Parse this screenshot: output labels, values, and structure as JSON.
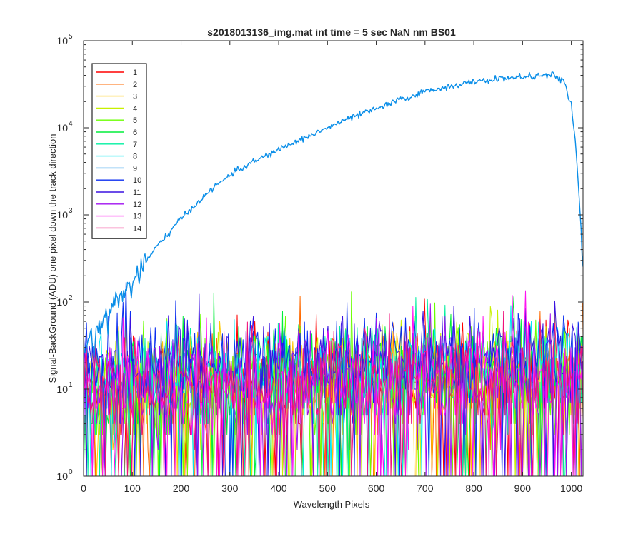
{
  "chart_data": {
    "type": "line",
    "title": "s2018013136_img.mat int time = 5 sec  NaN nm BS01",
    "xlabel": "Wavelength Pixels",
    "ylabel": "Signal-BackGround (ADU) one pixel down the track direction",
    "xlim": [
      0,
      1024
    ],
    "ylim": [
      1,
      100000
    ],
    "yscale": "log",
    "grid": false,
    "legend_position": "top-left",
    "x_ticks": [
      0,
      100,
      200,
      300,
      400,
      500,
      600,
      700,
      800,
      900,
      1000
    ],
    "y_ticks": [
      {
        "base": "10",
        "exp": "0"
      },
      {
        "base": "10",
        "exp": "1"
      },
      {
        "base": "10",
        "exp": "2"
      },
      {
        "base": "10",
        "exp": "3"
      },
      {
        "base": "10",
        "exp": "4"
      },
      {
        "base": "10",
        "exp": "5"
      }
    ],
    "series": [
      {
        "name": "1",
        "color": "#ff0000",
        "kind": "noise",
        "level": 12,
        "spread": 1.2
      },
      {
        "name": "2",
        "color": "#ff6a00",
        "kind": "noise",
        "level": 12,
        "spread": 1.2
      },
      {
        "name": "3",
        "color": "#ffc800",
        "kind": "noise",
        "level": 12,
        "spread": 1.2
      },
      {
        "name": "4",
        "color": "#c8f000",
        "kind": "noise",
        "level": 12,
        "spread": 1.2
      },
      {
        "name": "5",
        "color": "#6aff00",
        "kind": "noise",
        "level": 13,
        "spread": 1.2
      },
      {
        "name": "6",
        "color": "#00ee3a",
        "kind": "noise",
        "level": 13,
        "spread": 1.2
      },
      {
        "name": "7",
        "color": "#00f0a0",
        "kind": "noise",
        "level": 14,
        "spread": 1.2
      },
      {
        "name": "8",
        "color": "#00e8f0",
        "kind": "noise",
        "level": 18,
        "spread": 0.9
      },
      {
        "name": "9",
        "color": "#0a8ee8",
        "kind": "signal",
        "x": [
          0,
          10,
          20,
          30,
          40,
          50,
          60,
          80,
          100,
          120,
          150,
          200,
          250,
          300,
          350,
          400,
          450,
          500,
          550,
          600,
          650,
          700,
          750,
          800,
          850,
          900,
          950,
          965,
          985,
          1000,
          1010,
          1020,
          1024
        ],
        "y": [
          30,
          35,
          40,
          48,
          60,
          75,
          90,
          120,
          170,
          250,
          430,
          900,
          1700,
          2900,
          4100,
          5600,
          7500,
          10000,
          13200,
          16500,
          21000,
          26000,
          30000,
          33500,
          36500,
          38500,
          40000,
          40000,
          34000,
          18000,
          5500,
          700,
          160
        ]
      },
      {
        "name": "10",
        "color": "#0b2ef0",
        "kind": "noise",
        "level": 22,
        "spread": 1.0
      },
      {
        "name": "11",
        "color": "#3a10e0",
        "kind": "noise",
        "level": 20,
        "spread": 1.0
      },
      {
        "name": "12",
        "color": "#a010f0",
        "kind": "noise",
        "level": 12,
        "spread": 1.2
      },
      {
        "name": "13",
        "color": "#ff10f0",
        "kind": "noise",
        "level": 12,
        "spread": 1.2
      },
      {
        "name": "14",
        "color": "#f0107a",
        "kind": "noise",
        "level": 11,
        "spread": 1.1
      }
    ]
  }
}
